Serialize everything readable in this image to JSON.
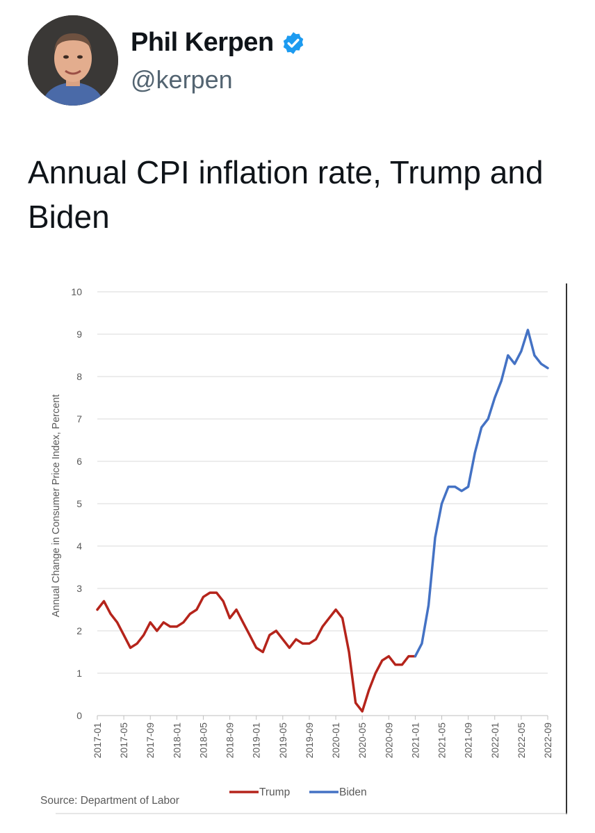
{
  "user": {
    "display_name": "Phil Kerpen",
    "handle": "@kerpen",
    "verified": true,
    "avatar_icon": "profile-photo",
    "verified_icon": "verified-badge-icon",
    "verified_color": "#1d9bf0"
  },
  "tweet": {
    "text": "Annual CPI inflation rate, Trump and Biden"
  },
  "chart_data": {
    "type": "line",
    "title": "",
    "xlabel": "",
    "ylabel": "Annual Change in Consumer Price Index, Percent",
    "ylim": [
      0,
      10
    ],
    "yticks": [
      "0",
      "1",
      "2",
      "3",
      "4",
      "5",
      "6",
      "7",
      "8",
      "9",
      "10"
    ],
    "xtick_labels": [
      "2017-01",
      "2017-05",
      "2017-09",
      "2018-01",
      "2018-05",
      "2018-09",
      "2019-01",
      "2019-05",
      "2019-09",
      "2020-01",
      "2020-05",
      "2020-09",
      "2021-01",
      "2021-05",
      "2021-09",
      "2022-01",
      "2022-05",
      "2022-09"
    ],
    "grid": true,
    "legend_position": "bottom",
    "source": "Source: Department of Labor",
    "series": [
      {
        "name": "Trump",
        "color": "#b5241b",
        "start": "2017-01",
        "values": [
          2.5,
          2.7,
          2.4,
          2.2,
          1.9,
          1.6,
          1.7,
          1.9,
          2.2,
          2.0,
          2.2,
          2.1,
          2.1,
          2.2,
          2.4,
          2.5,
          2.8,
          2.9,
          2.9,
          2.7,
          2.3,
          2.5,
          2.2,
          1.9,
          1.6,
          1.5,
          1.9,
          2.0,
          1.8,
          1.6,
          1.8,
          1.7,
          1.7,
          1.8,
          2.1,
          2.3,
          2.5,
          2.3,
          1.5,
          0.3,
          0.1,
          0.6,
          1.0,
          1.3,
          1.4,
          1.2,
          1.2,
          1.4,
          1.4
        ]
      },
      {
        "name": "Biden",
        "color": "#4472c4",
        "start": "2021-01",
        "values": [
          1.4,
          1.7,
          2.6,
          4.2,
          5.0,
          5.4,
          5.4,
          5.3,
          5.4,
          6.2,
          6.8,
          7.0,
          7.5,
          7.9,
          8.5,
          8.3,
          8.6,
          9.1,
          8.5,
          8.3,
          8.2
        ]
      }
    ]
  }
}
